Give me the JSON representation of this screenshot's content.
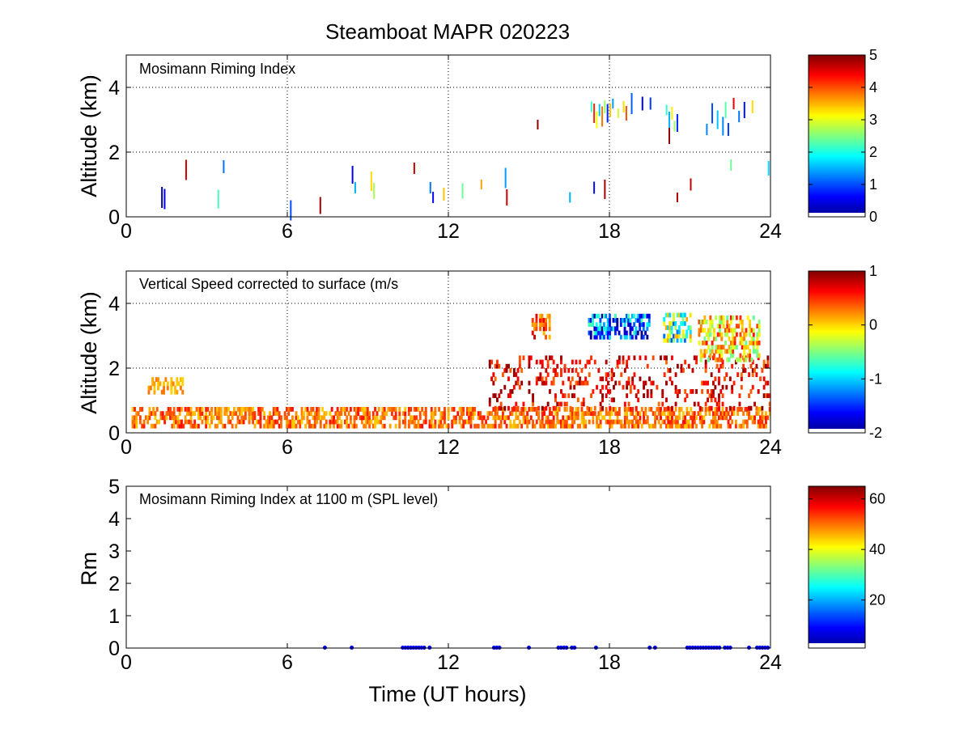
{
  "figure": {
    "title": "Steamboat MAPR 020223",
    "xlabel": "Time (UT hours)"
  },
  "chart_data": [
    {
      "type": "heatmap",
      "id": "riming",
      "annotation": "Mosimann Riming Index",
      "xlabel": "",
      "ylabel": "Altitude (km)",
      "xlim": [
        0,
        24
      ],
      "ylim": [
        0,
        5
      ],
      "xticks": [
        0,
        6,
        12,
        18,
        24
      ],
      "yticks": [
        0,
        2,
        4
      ],
      "grid": "dotted",
      "colorbar": {
        "min": 0,
        "max": 5,
        "ticks": [
          0,
          1,
          2,
          3,
          4,
          5
        ],
        "colormap": "jet"
      },
      "cells": [
        [
          1.3,
          0.6,
          0.2
        ],
        [
          1.4,
          0.55,
          0.6
        ],
        [
          2.2,
          1.45,
          4.6
        ],
        [
          3.4,
          0.55,
          2.2
        ],
        [
          3.6,
          1.55,
          1.2
        ],
        [
          6.1,
          0.2,
          1.0
        ],
        [
          7.2,
          0.35,
          4.8
        ],
        [
          8.4,
          1.3,
          0.5
        ],
        [
          8.5,
          0.9,
          1.5
        ],
        [
          9.1,
          1.1,
          3.3
        ],
        [
          9.2,
          0.8,
          2.7
        ],
        [
          10.7,
          1.5,
          4.7
        ],
        [
          11.3,
          0.9,
          1.2
        ],
        [
          11.4,
          0.6,
          0.7
        ],
        [
          11.8,
          0.7,
          3.4
        ],
        [
          12.5,
          0.8,
          2.4
        ],
        [
          13.2,
          1.0,
          3.6
        ],
        [
          14.1,
          1.2,
          1.4
        ],
        [
          14.15,
          0.6,
          4.6
        ],
        [
          15.3,
          2.85,
          4.9
        ],
        [
          16.5,
          0.6,
          1.5
        ],
        [
          17.4,
          0.9,
          0.7
        ],
        [
          17.8,
          0.85,
          4.8
        ],
        [
          17.3,
          3.4,
          2.1
        ],
        [
          17.4,
          3.2,
          4.2
        ],
        [
          17.5,
          3.0,
          3.1
        ],
        [
          17.6,
          3.3,
          1.6
        ],
        [
          17.7,
          3.1,
          3.8
        ],
        [
          17.8,
          3.4,
          2.6
        ],
        [
          17.9,
          3.2,
          0.8
        ],
        [
          18.0,
          3.3,
          3.4
        ],
        [
          18.1,
          3.5,
          1.4
        ],
        [
          18.3,
          3.2,
          2.9
        ],
        [
          18.5,
          3.4,
          3.3
        ],
        [
          18.6,
          3.2,
          4.0
        ],
        [
          18.8,
          3.5,
          1.1
        ],
        [
          19.2,
          3.5,
          0.6
        ],
        [
          19.5,
          3.5,
          0.9
        ],
        [
          20.1,
          3.3,
          2.1
        ],
        [
          20.2,
          3.0,
          1.5
        ],
        [
          20.3,
          3.2,
          3.2
        ],
        [
          20.4,
          2.8,
          2.6
        ],
        [
          20.5,
          2.9,
          0.8
        ],
        [
          20.2,
          2.5,
          4.9
        ],
        [
          20.5,
          0.6,
          4.8
        ],
        [
          21.0,
          1.0,
          4.7
        ],
        [
          21.6,
          2.7,
          1.3
        ],
        [
          21.8,
          3.2,
          1.0
        ],
        [
          22.0,
          3.0,
          1.6
        ],
        [
          22.2,
          2.8,
          1.3
        ],
        [
          22.3,
          3.3,
          2.3
        ],
        [
          22.4,
          2.7,
          0.9
        ],
        [
          22.6,
          3.5,
          4.5
        ],
        [
          22.8,
          3.1,
          1.2
        ],
        [
          23.0,
          3.3,
          0.7
        ],
        [
          22.5,
          1.6,
          2.4
        ],
        [
          23.3,
          3.4,
          3.3
        ],
        [
          23.9,
          1.5,
          1.7
        ]
      ]
    },
    {
      "type": "heatmap",
      "id": "vspeed",
      "annotation": "Vertical Speed corrected to surface (m/s",
      "xlabel": "",
      "ylabel": "Altitude (km)",
      "xlim": [
        0,
        24
      ],
      "ylim": [
        0,
        5
      ],
      "xticks": [
        0,
        6,
        12,
        18,
        24
      ],
      "yticks": [
        0,
        2,
        4
      ],
      "grid": "dotted",
      "colorbar": {
        "min": -2,
        "max": 1,
        "ticks": [
          -2,
          -1,
          0,
          1
        ],
        "colormap": "jet"
      },
      "features": [
        {
          "kind": "band",
          "t0": 0.2,
          "t1": 24,
          "z0": 0.15,
          "z1": 0.8,
          "vmin": 0.0,
          "vmax": 0.6,
          "density": 0.55
        },
        {
          "kind": "band",
          "t0": 0.8,
          "t1": 2.1,
          "z0": 1.2,
          "z1": 1.7,
          "vmin": 0.0,
          "vmax": 0.3,
          "density": 0.35
        },
        {
          "kind": "band",
          "t0": 13.5,
          "t1": 24,
          "z0": 0.7,
          "z1": 2.3,
          "vmin": 0.3,
          "vmax": 1.0,
          "density": 0.2
        },
        {
          "kind": "band",
          "t0": 15.1,
          "t1": 15.8,
          "z0": 2.9,
          "z1": 3.6,
          "vmin": 0.0,
          "vmax": 0.8,
          "density": 0.5
        },
        {
          "kind": "band",
          "t0": 17.2,
          "t1": 19.5,
          "z0": 2.9,
          "z1": 3.6,
          "vmin": -2.0,
          "vmax": -0.6,
          "density": 0.55
        },
        {
          "kind": "band",
          "t0": 20.0,
          "t1": 21.0,
          "z0": 2.8,
          "z1": 3.6,
          "vmin": -1.4,
          "vmax": 0.2,
          "density": 0.55
        },
        {
          "kind": "band",
          "t0": 21.3,
          "t1": 23.6,
          "z0": 2.2,
          "z1": 3.6,
          "vmin": -0.6,
          "vmax": 0.6,
          "density": 0.55
        }
      ]
    },
    {
      "type": "scatter",
      "id": "riming1100",
      "annotation": "Mosimann Riming Index at 1100 m (SPL level)",
      "xlabel": "Time (UT hours)",
      "ylabel": "Rm",
      "xlim": [
        0,
        24
      ],
      "ylim": [
        0,
        5
      ],
      "xticks": [
        0,
        6,
        12,
        18,
        24
      ],
      "yticks": [
        0,
        1,
        2,
        3,
        4,
        5
      ],
      "grid": "none",
      "colorbar": {
        "min": 1,
        "max": 65,
        "ticks": [
          20,
          40,
          60
        ],
        "colormap": "jet"
      },
      "points": {
        "x": [
          7.4,
          8.4,
          10.3,
          10.4,
          10.5,
          10.6,
          10.7,
          10.8,
          10.9,
          11.0,
          11.1,
          11.3,
          13.7,
          13.8,
          13.9,
          15.0,
          16.1,
          16.2,
          16.3,
          16.4,
          16.6,
          16.7,
          17.5,
          19.5,
          19.7,
          20.9,
          21.0,
          21.1,
          21.2,
          21.3,
          21.4,
          21.5,
          21.6,
          21.7,
          21.8,
          21.9,
          22.0,
          22.1,
          22.3,
          22.4,
          22.5,
          23.2,
          23.5,
          23.6,
          23.7,
          23.8,
          23.9
        ],
        "y": [
          0,
          0,
          0,
          0,
          0,
          0,
          0,
          0,
          0,
          0,
          0,
          0,
          0,
          0,
          0,
          0,
          0,
          0,
          0,
          0,
          0,
          0,
          0,
          0,
          0,
          0,
          0,
          0,
          0,
          0,
          0,
          0,
          0,
          0,
          0,
          0,
          0,
          0,
          0,
          0,
          0,
          0,
          0,
          0,
          0,
          0,
          0
        ],
        "color": "#0000ff"
      }
    }
  ]
}
